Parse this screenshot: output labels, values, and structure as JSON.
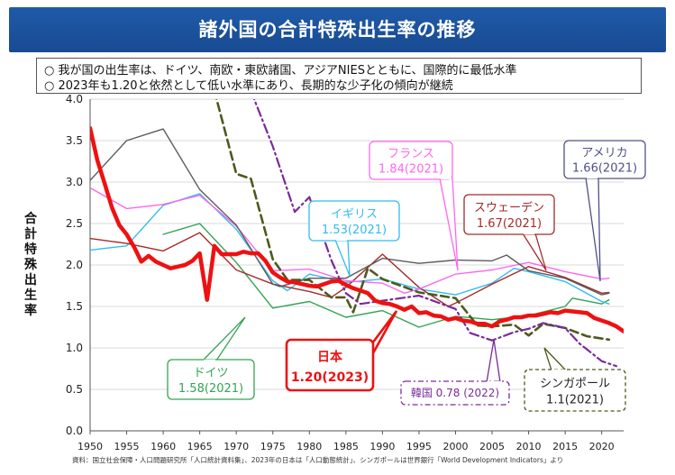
{
  "header": {
    "title": "諸外国の合計特殊出生率の推移"
  },
  "notes": [
    "○ 我が国の出生率は、ドイツ、南欧・東欧諸国、アジアNIESとともに、国際的に最低水準",
    "○ 2023年も1.20と依然として低い水準にあり、長期的な少子化の傾向が継続"
  ],
  "source": "資料：国立社会保障・人口問題研究所「人口統計資料集」、2023年の日本は「人口動態統計」、シンガポールは世界銀行「World Development Indicators」より",
  "chart_data": {
    "type": "line",
    "ylabel": "合計特殊出生率",
    "xlabel": "",
    "xlim": [
      1950,
      2023
    ],
    "ylim": [
      0.0,
      4.0
    ],
    "yticks": [
      "0.0",
      "0.5",
      "1.0",
      "1.5",
      "2.0",
      "2.5",
      "3.0",
      "3.5",
      "4.0"
    ],
    "xticks": [
      "1950",
      "1955",
      "1960",
      "1965",
      "1970",
      "1975",
      "1980",
      "1985",
      "1990",
      "1995",
      "2000",
      "2005",
      "2010",
      "2015",
      "2020"
    ],
    "grid": true,
    "series": [
      {
        "key": "japan",
        "name": "日本",
        "color": "#ee1111",
        "style": "solid-thick",
        "x": [
          1950,
          1951,
          1952,
          1953,
          1954,
          1955,
          1956,
          1957,
          1958,
          1959,
          1960,
          1961,
          1962,
          1963,
          1964,
          1965,
          1966,
          1967,
          1968,
          1969,
          1970,
          1971,
          1972,
          1973,
          1974,
          1975,
          1976,
          1977,
          1978,
          1979,
          1980,
          1981,
          1982,
          1983,
          1984,
          1985,
          1986,
          1987,
          1988,
          1989,
          1990,
          1991,
          1992,
          1993,
          1994,
          1995,
          1996,
          1997,
          1998,
          1999,
          2000,
          2001,
          2002,
          2003,
          2004,
          2005,
          2006,
          2007,
          2008,
          2009,
          2010,
          2011,
          2012,
          2013,
          2014,
          2015,
          2016,
          2017,
          2018,
          2019,
          2020,
          2021,
          2022,
          2023
        ],
        "y": [
          3.65,
          3.26,
          2.98,
          2.69,
          2.48,
          2.37,
          2.22,
          2.04,
          2.11,
          2.04,
          2.0,
          1.96,
          1.98,
          2.0,
          2.05,
          2.14,
          1.58,
          2.23,
          2.13,
          2.13,
          2.13,
          2.16,
          2.14,
          2.14,
          2.05,
          1.91,
          1.85,
          1.8,
          1.79,
          1.77,
          1.75,
          1.74,
          1.77,
          1.8,
          1.81,
          1.76,
          1.72,
          1.69,
          1.66,
          1.57,
          1.54,
          1.53,
          1.5,
          1.46,
          1.5,
          1.42,
          1.43,
          1.39,
          1.38,
          1.34,
          1.36,
          1.33,
          1.32,
          1.29,
          1.29,
          1.26,
          1.32,
          1.34,
          1.37,
          1.37,
          1.39,
          1.39,
          1.41,
          1.43,
          1.42,
          1.45,
          1.44,
          1.43,
          1.42,
          1.36,
          1.33,
          1.3,
          1.26,
          1.2
        ]
      },
      {
        "key": "korea",
        "name": "韓国",
        "color": "#7b2a9a",
        "style": "dashdot",
        "x": [
          1972,
          1975,
          1978,
          1980,
          1983,
          1985,
          1987,
          1990,
          1995,
          2000,
          2002,
          2005,
          2008,
          2010,
          2012,
          2015,
          2017,
          2018,
          2020,
          2022
        ],
        "y": [
          4.1,
          3.43,
          2.64,
          2.82,
          2.06,
          1.66,
          1.53,
          1.57,
          1.63,
          1.47,
          1.18,
          1.09,
          1.19,
          1.23,
          1.3,
          1.24,
          1.05,
          0.98,
          0.84,
          0.78
        ]
      },
      {
        "key": "singapore",
        "name": "シンガポール",
        "color": "#4d5a1e",
        "style": "dashed",
        "x": [
          1967,
          1970,
          1972,
          1975,
          1977,
          1980,
          1983,
          1985,
          1986,
          1988,
          1990,
          1995,
          2000,
          2003,
          2005,
          2008,
          2010,
          2012,
          2015,
          2018,
          2021
        ],
        "y": [
          4.1,
          3.1,
          3.04,
          2.07,
          1.82,
          1.82,
          1.61,
          1.61,
          1.43,
          1.96,
          1.83,
          1.67,
          1.6,
          1.27,
          1.26,
          1.28,
          1.15,
          1.29,
          1.24,
          1.14,
          1.1
        ]
      },
      {
        "key": "usa",
        "name": "アメリカ",
        "color": "#5b5b5b",
        "style": "solid",
        "x": [
          1950,
          1955,
          1960,
          1965,
          1970,
          1975,
          1976,
          1980,
          1985,
          1990,
          1995,
          2000,
          2005,
          2007,
          2010,
          2015,
          2020,
          2021
        ],
        "y": [
          3.02,
          3.5,
          3.64,
          2.91,
          2.48,
          1.77,
          1.74,
          1.84,
          1.84,
          2.08,
          2.02,
          2.06,
          2.05,
          2.12,
          1.93,
          1.84,
          1.64,
          1.66
        ]
      },
      {
        "key": "france",
        "name": "フランス",
        "color": "#ff66ee",
        "style": "solid",
        "x": [
          1950,
          1955,
          1960,
          1965,
          1970,
          1975,
          1980,
          1985,
          1990,
          1993,
          1995,
          2000,
          2005,
          2010,
          2015,
          2020,
          2021
        ],
        "y": [
          2.93,
          2.68,
          2.73,
          2.84,
          2.47,
          1.93,
          1.95,
          1.81,
          1.78,
          1.66,
          1.71,
          1.89,
          1.94,
          2.03,
          1.92,
          1.83,
          1.84
        ]
      },
      {
        "key": "sweden",
        "name": "スウェーデン",
        "color": "#a52a2a",
        "style": "solid",
        "x": [
          1950,
          1955,
          1960,
          1965,
          1970,
          1975,
          1980,
          1983,
          1985,
          1990,
          1995,
          1999,
          2000,
          2005,
          2010,
          2015,
          2020,
          2021
        ],
        "y": [
          2.32,
          2.26,
          2.17,
          2.39,
          1.94,
          1.77,
          1.68,
          1.61,
          1.73,
          2.13,
          1.73,
          1.5,
          1.54,
          1.77,
          1.98,
          1.85,
          1.66,
          1.67
        ]
      },
      {
        "key": "uk",
        "name": "イギリス",
        "color": "#33bbee",
        "style": "solid",
        "x": [
          1950,
          1955,
          1960,
          1965,
          1970,
          1975,
          1977,
          1980,
          1985,
          1990,
          1995,
          2000,
          2005,
          2008,
          2010,
          2015,
          2020,
          2021
        ],
        "y": [
          2.18,
          2.23,
          2.72,
          2.86,
          2.43,
          1.81,
          1.69,
          1.89,
          1.79,
          1.83,
          1.71,
          1.64,
          1.78,
          1.96,
          1.92,
          1.8,
          1.56,
          1.53
        ]
      },
      {
        "key": "germany",
        "name": "ドイツ",
        "color": "#33a353",
        "style": "solid",
        "x": [
          1960,
          1965,
          1970,
          1975,
          1980,
          1985,
          1990,
          1995,
          2000,
          2005,
          2010,
          2015,
          2016,
          2020,
          2021
        ],
        "y": [
          2.37,
          2.5,
          2.03,
          1.48,
          1.56,
          1.37,
          1.45,
          1.25,
          1.38,
          1.34,
          1.39,
          1.5,
          1.6,
          1.53,
          1.58
        ]
      }
    ],
    "callouts": {
      "japan": {
        "name": "日本",
        "value": "1.20(2023)"
      },
      "korea": {
        "value": "韓国 0.78 (2022)"
      },
      "singapore": {
        "name": "シンガポール",
        "value": "1.1(2021)"
      },
      "usa": {
        "name": "アメリカ",
        "value": "1.66(2021)"
      },
      "france": {
        "name": "フランス",
        "value": "1.84(2021)"
      },
      "sweden": {
        "name": "スウェーデン",
        "value": "1.67(2021)"
      },
      "uk": {
        "name": "イギリス",
        "value": "1.53(2021)"
      },
      "germany": {
        "name": "ドイツ",
        "value": "1.58(2021)"
      }
    }
  }
}
